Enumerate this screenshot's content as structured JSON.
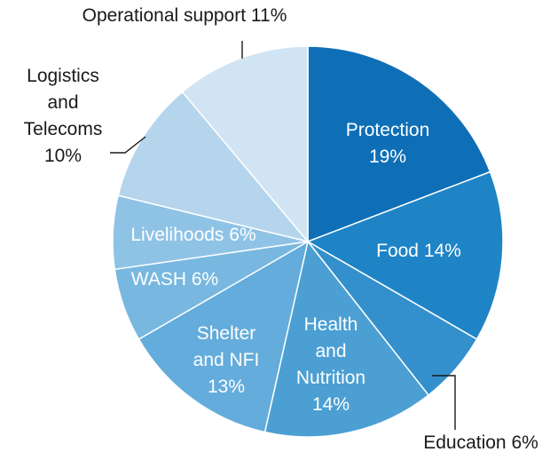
{
  "chart_data": {
    "type": "pie",
    "title": "",
    "slices": [
      {
        "name": "Protection",
        "value": 19,
        "color": "#0e6fb7",
        "label_lines": [
          "Protection",
          "19%"
        ]
      },
      {
        "name": "Food",
        "value": 14,
        "color": "#1f84c6",
        "label_lines": [
          "Food 14%"
        ]
      },
      {
        "name": "Education",
        "value": 6,
        "color": "#3490cc",
        "label_lines": [
          "Education 6%"
        ]
      },
      {
        "name": "Health and Nutrition",
        "value": 14,
        "color": "#4b9fd3",
        "label_lines": [
          "Health",
          "and",
          "Nutrition",
          "14%"
        ]
      },
      {
        "name": "Shelter and NFI",
        "value": 13,
        "color": "#63acdb",
        "label_lines": [
          "Shelter",
          "and NFI",
          "13%"
        ]
      },
      {
        "name": "WASH",
        "value": 6,
        "color": "#78b8e0",
        "label_lines": [
          "WASH 6%"
        ]
      },
      {
        "name": "Livelihoods",
        "value": 6,
        "color": "#8fc3e6",
        "label_lines": [
          "Livelihoods 6%"
        ]
      },
      {
        "name": "Logistics and Telecoms",
        "value": 10,
        "color": "#b5d5ed",
        "label_lines": [
          "Logistics",
          "and",
          "Telecoms",
          "10%"
        ]
      },
      {
        "name": "Operational support",
        "value": 11,
        "color": "#d0e4f3",
        "label_lines": [
          "Operational support 11%"
        ]
      }
    ]
  }
}
